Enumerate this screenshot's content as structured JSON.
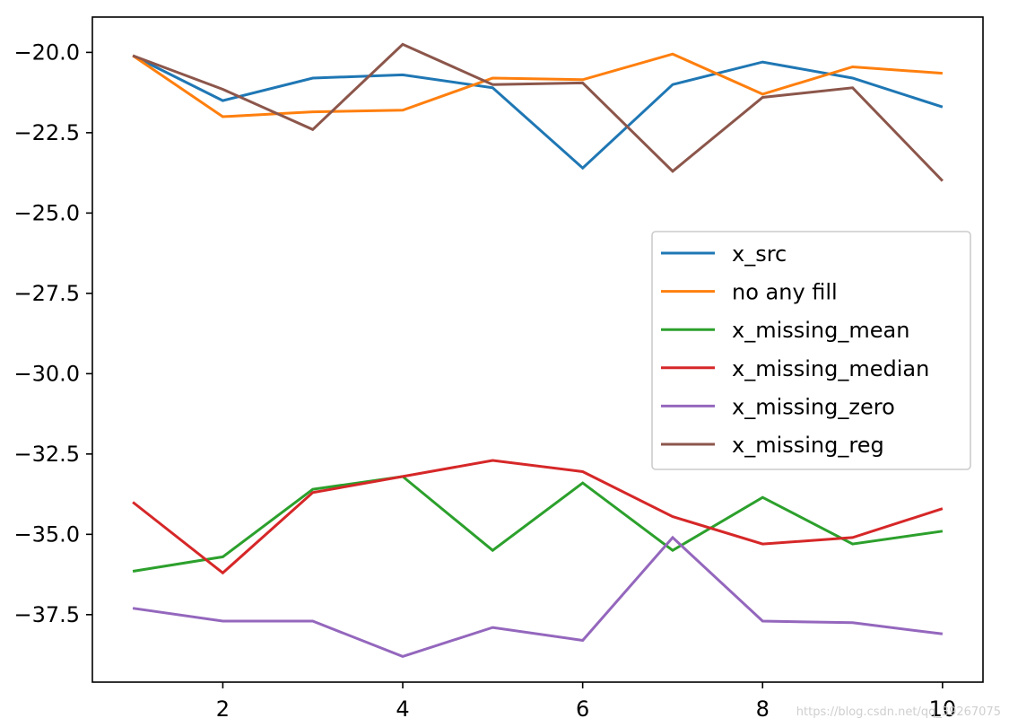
{
  "chart_data": {
    "type": "line",
    "title": "",
    "xlabel": "",
    "ylabel": "",
    "xlim": [
      0.55,
      10.45
    ],
    "ylim": [
      -39.6,
      -18.9
    ],
    "x": [
      1,
      2,
      3,
      4,
      5,
      6,
      7,
      8,
      9,
      10
    ],
    "xticks": [
      2,
      4,
      6,
      8,
      10
    ],
    "yticks": [
      -20.0,
      -22.5,
      -25.0,
      -27.5,
      -30.0,
      -32.5,
      -35.0,
      -37.5
    ],
    "xtick_labels": [
      "2",
      "4",
      "6",
      "8",
      "10"
    ],
    "ytick_labels": [
      "−20.0",
      "−22.5",
      "−25.0",
      "−27.5",
      "−30.0",
      "−32.5",
      "−35.0",
      "−37.5"
    ],
    "grid": false,
    "legend_position": "center-right",
    "series": [
      {
        "name": "x_src",
        "color": "#1f77b4",
        "values": [
          -20.1,
          -21.5,
          -20.8,
          -20.7,
          -21.1,
          -23.6,
          -21.0,
          -20.3,
          -20.8,
          -21.7
        ]
      },
      {
        "name": "no any fill",
        "color": "#ff7f0e",
        "values": [
          -20.1,
          -22.0,
          -21.85,
          -21.8,
          -20.8,
          -20.85,
          -20.05,
          -21.3,
          -20.45,
          -20.65
        ]
      },
      {
        "name": "x_missing_mean",
        "color": "#2ca02c",
        "values": [
          -36.15,
          -35.7,
          -33.6,
          -33.2,
          -35.5,
          -33.4,
          -35.5,
          -33.85,
          -35.3,
          -34.9
        ]
      },
      {
        "name": "x_missing_median",
        "color": "#d62728",
        "values": [
          -34.0,
          -36.2,
          -33.7,
          -33.2,
          -32.7,
          -33.05,
          -34.45,
          -35.3,
          -35.1,
          -34.2
        ]
      },
      {
        "name": "x_missing_zero",
        "color": "#9467bd",
        "values": [
          -37.3,
          -37.7,
          -37.7,
          -38.8,
          -37.9,
          -38.3,
          -35.1,
          -37.7,
          -37.75,
          -38.1
        ]
      },
      {
        "name": "x_missing_reg",
        "color": "#8c564b",
        "values": [
          -20.1,
          -21.15,
          -22.4,
          -19.75,
          -21.0,
          -20.95,
          -23.7,
          -21.4,
          -21.1,
          -24.0
        ]
      }
    ]
  },
  "watermark": {
    "text": "https://blog.csdn.net/qq_39267075"
  }
}
